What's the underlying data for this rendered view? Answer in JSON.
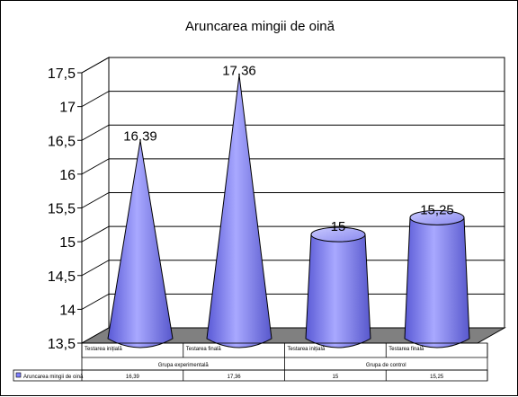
{
  "chart_data": {
    "type": "bar",
    "shape": "cone",
    "title": "Aruncarea mingii de oină",
    "categories": [
      "Testarea inițială",
      "Testarea finală",
      "Testarea inițială",
      "Testarea finală"
    ],
    "groups": [
      {
        "label": "Grupa experimentală",
        "span": [
          0,
          1
        ]
      },
      {
        "label": "Grupa de control",
        "span": [
          2,
          3
        ]
      }
    ],
    "series": [
      {
        "name": "Aruncarea mingii de oină",
        "values": [
          16.39,
          17.36,
          15,
          15.25
        ],
        "labels": [
          "16,39",
          "17,36",
          "15",
          "15,25"
        ],
        "color": "#8080ff"
      }
    ],
    "yticks": [
      "13,5",
      "14",
      "14,5",
      "15",
      "15,5",
      "16",
      "16,5",
      "17",
      "17,5"
    ],
    "ylim": [
      13.5,
      17.5
    ],
    "grid": true,
    "legend": "data-table-left",
    "colors": {
      "cone": "#8080ff",
      "floor": "#808080",
      "grid": "#000000"
    }
  }
}
